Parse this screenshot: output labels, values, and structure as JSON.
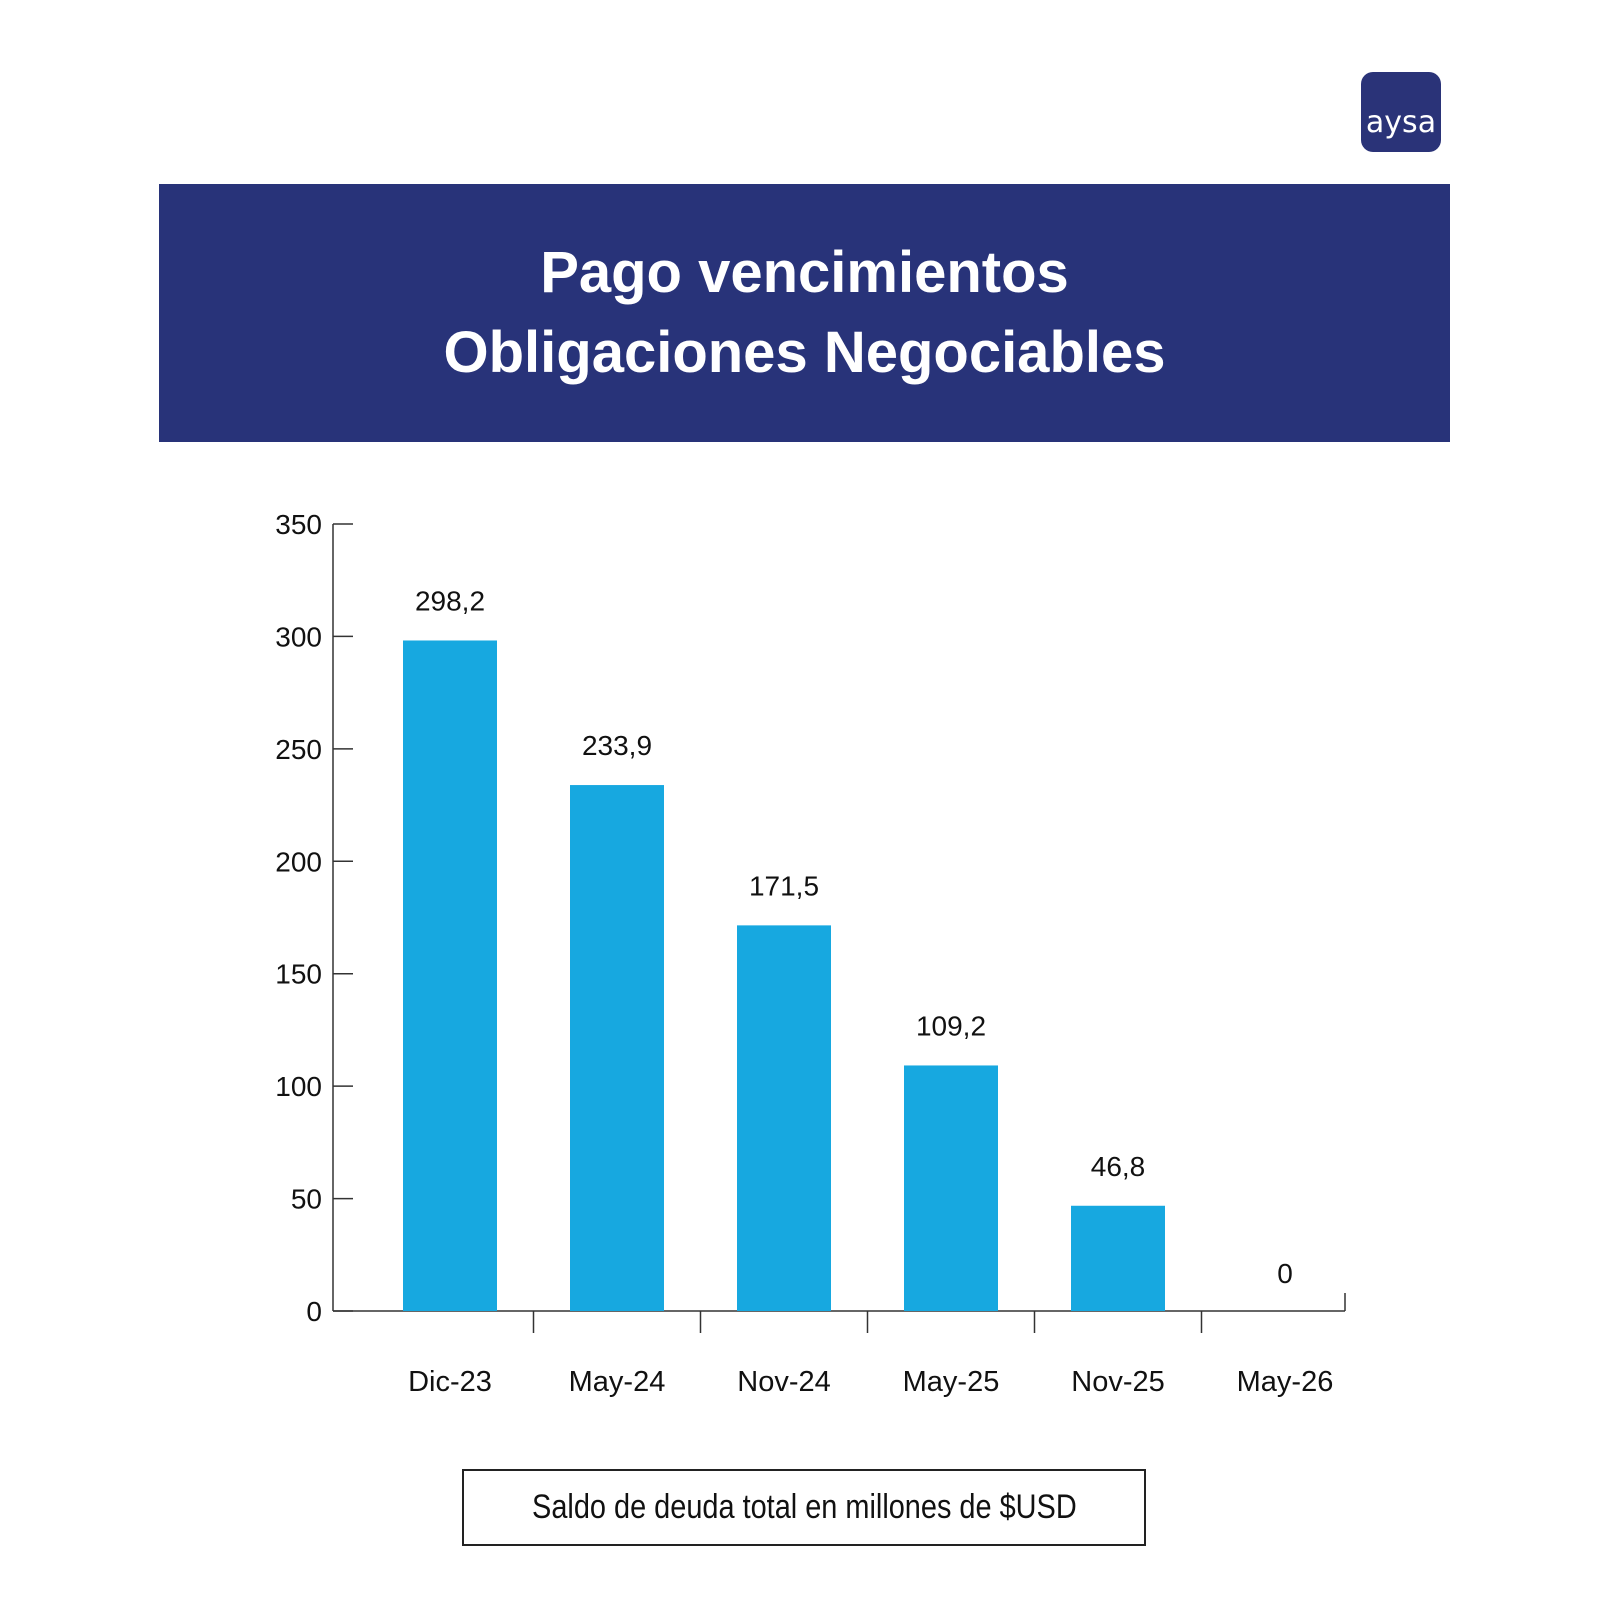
{
  "logo": {
    "text": "aysa",
    "color": "#2a3378"
  },
  "header": {
    "line1": "Pago vencimientos",
    "line2": "Obligaciones Negociables",
    "background": "#283379"
  },
  "chart_data": {
    "type": "bar",
    "categories": [
      "Dic-23",
      "May-24",
      "Nov-24",
      "May-25",
      "Nov-25",
      "May-26"
    ],
    "values": [
      298.2,
      233.9,
      171.5,
      109.2,
      46.8,
      0
    ],
    "data_labels": [
      "298,2",
      "233,9",
      "171,5",
      "109,2",
      "46,8",
      "0"
    ],
    "yticks": [
      0,
      50,
      100,
      150,
      200,
      250,
      300,
      350
    ],
    "ylim": [
      0,
      350
    ],
    "bar_color": "#17a8e0",
    "grid": false,
    "legend": "Saldo de deuda total en millones de $USD",
    "legend_placement": "bottom"
  }
}
